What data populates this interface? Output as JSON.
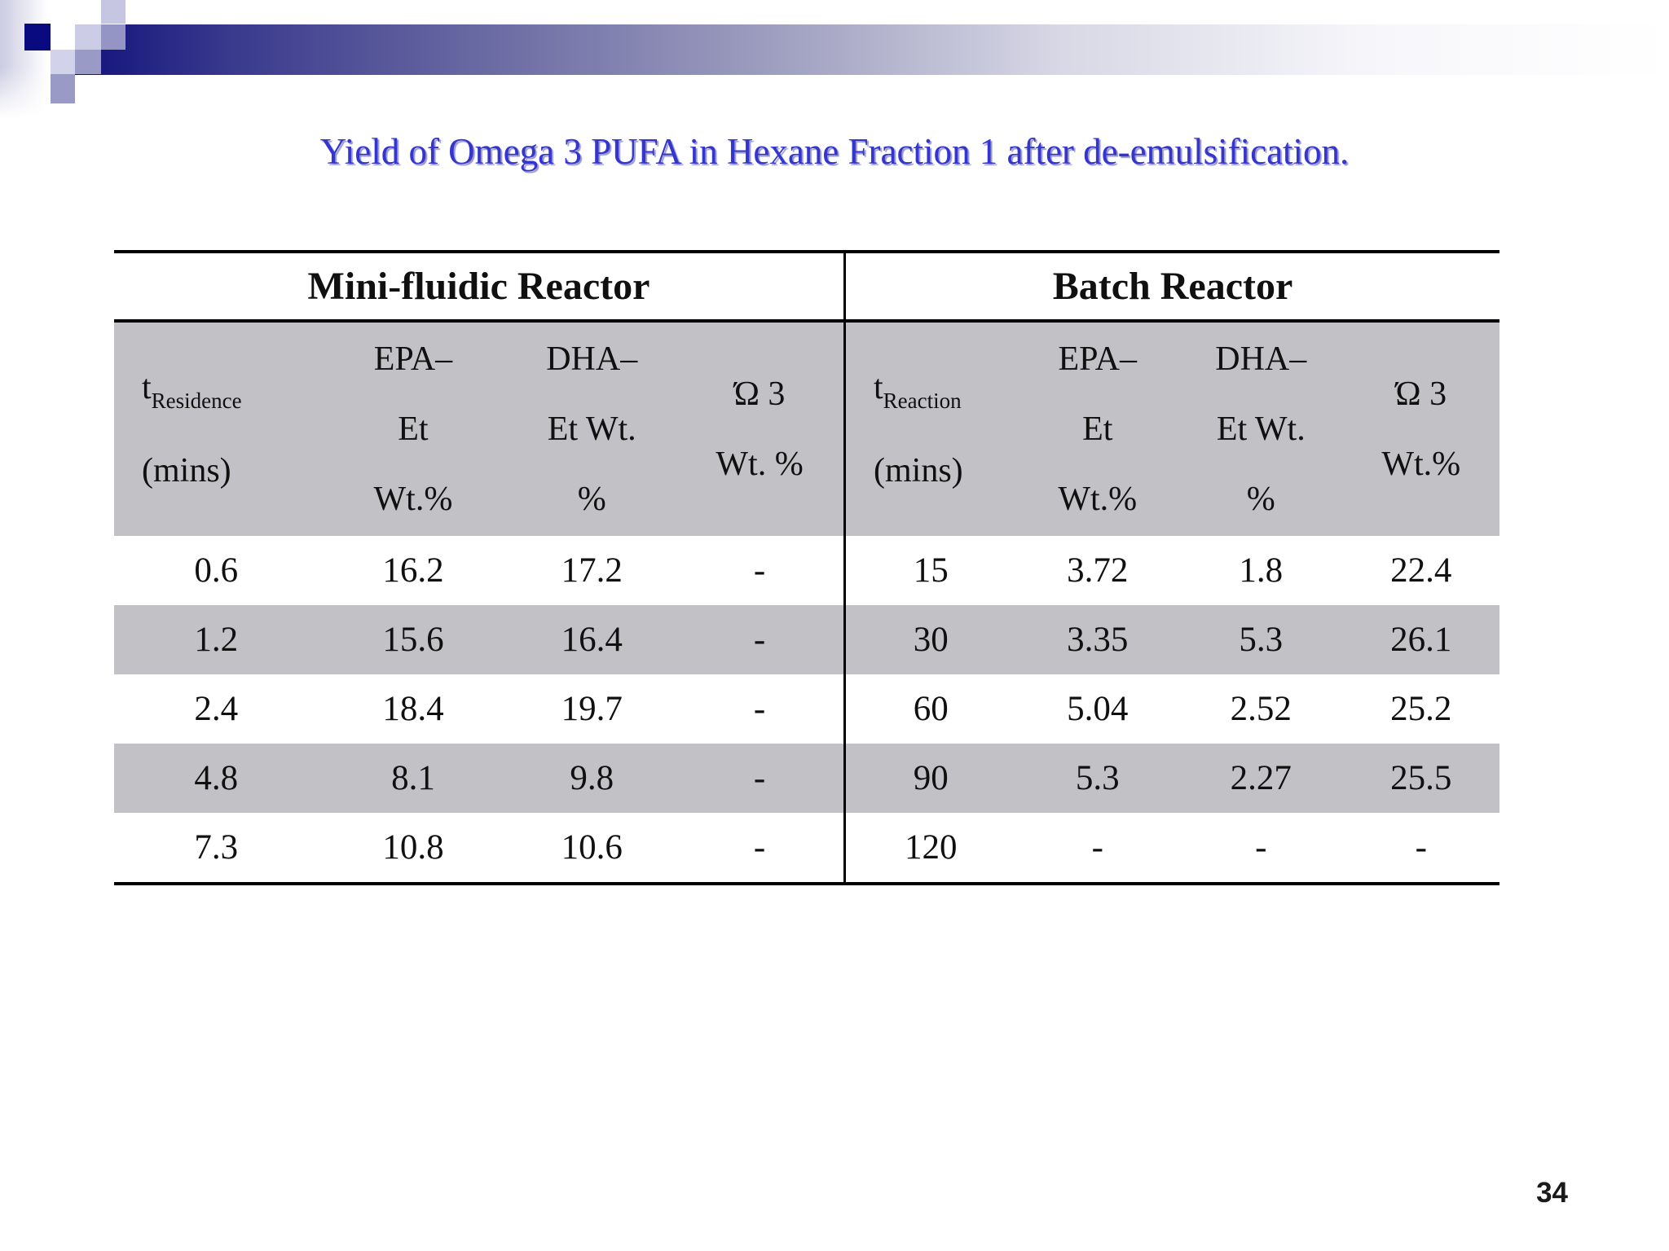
{
  "slide": {
    "title": "Yield of Omega 3 PUFA in Hexane Fraction 1 after de-emulsification.",
    "page_number": "34",
    "colors": {
      "title_blue": "#3434ce",
      "band_gray": "#c2c2c6",
      "banner_navy": "#12127c"
    }
  },
  "table": {
    "left": {
      "reactor_label": "Mini-fluidic Reactor",
      "col_headers": {
        "time": {
          "symbol": "t",
          "subscript": "Residence",
          "line2": "(mins)"
        },
        "epa": [
          "EPA–",
          "Et",
          "Wt.%"
        ],
        "dha": [
          "DHA–",
          "Et Wt.",
          "%"
        ],
        "omega": [
          "Ώ 3",
          "Wt. %"
        ]
      },
      "rows": [
        [
          "0.6",
          "16.2",
          "17.2",
          "-"
        ],
        [
          "1.2",
          "15.6",
          "16.4",
          "-"
        ],
        [
          "2.4",
          "18.4",
          "19.7",
          "-"
        ],
        [
          "4.8",
          "8.1",
          "9.8",
          "-"
        ],
        [
          "7.3",
          "10.8",
          "10.6",
          "-"
        ]
      ]
    },
    "right": {
      "reactor_label": "Batch Reactor",
      "col_headers": {
        "time": {
          "symbol": "t",
          "subscript": "Reaction",
          "line2": "(mins)"
        },
        "epa": [
          "EPA–",
          "Et",
          "Wt.%"
        ],
        "dha": [
          "DHA–",
          "Et Wt.",
          "%"
        ],
        "omega": [
          "Ώ 3",
          "Wt.%"
        ]
      },
      "rows": [
        [
          "15",
          "3.72",
          "1.8",
          "22.4"
        ],
        [
          "30",
          "3.35",
          "5.3",
          "26.1"
        ],
        [
          "60",
          "5.04",
          "2.52",
          "25.2"
        ],
        [
          "90",
          "5.3",
          "2.27",
          "25.5"
        ],
        [
          "120",
          "-",
          "-",
          "-"
        ]
      ]
    }
  }
}
